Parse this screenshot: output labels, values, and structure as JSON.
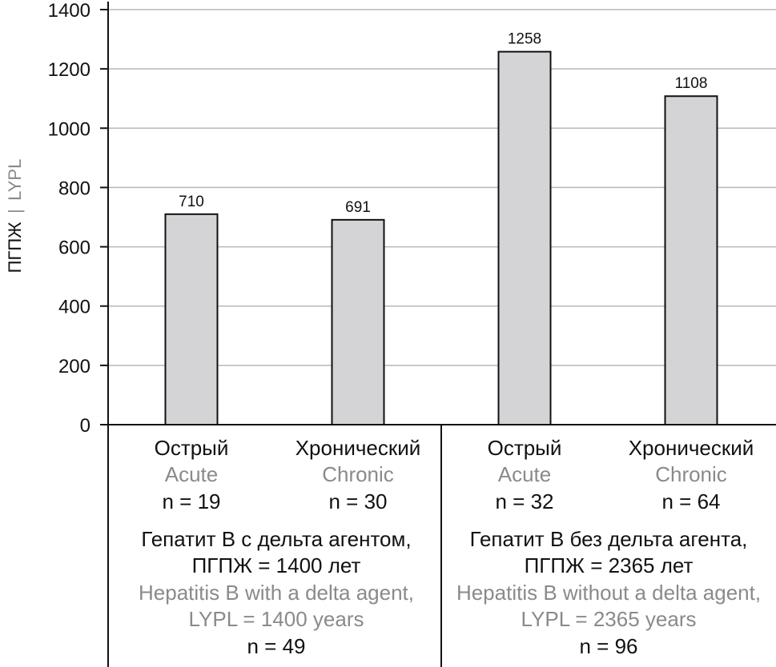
{
  "chart_data": {
    "type": "bar",
    "ylabel": {
      "ru": "ПГПЖ",
      "separator": "|",
      "en": "LYPL"
    },
    "ylim": [
      0,
      1400
    ],
    "yticks": [
      0,
      200,
      400,
      600,
      800,
      1000,
      1200,
      1400
    ],
    "grid": true,
    "bar_color": "#d4d4d6",
    "series": [
      {
        "values": [
          710,
          691,
          1258,
          1108
        ]
      }
    ],
    "categories": [
      {
        "ru": "Острый",
        "en": "Acute",
        "n": "n = 19",
        "value": 710,
        "label": "710"
      },
      {
        "ru": "Хронический",
        "en": "Chronic",
        "n": "n = 30",
        "value": 691,
        "label": "691"
      },
      {
        "ru": "Острый",
        "en": "Acute",
        "n": "n = 32",
        "value": 1258,
        "label": "1258"
      },
      {
        "ru": "Хронический",
        "en": "Chronic",
        "n": "n = 64",
        "value": 1108,
        "label": "1108"
      }
    ],
    "groups": [
      {
        "ru_line1": "Гепатит В с дельта агентом,",
        "ru_line2": "ПГПЖ = 1400 лет",
        "en_line1": "Hepatitis B with a delta agent,",
        "en_line2": "LYPL = 1400 years",
        "n": "n = 49"
      },
      {
        "ru_line1": "Гепатит В без дельта агента,",
        "ru_line2": "ПГПЖ = 2365 лет",
        "en_line1": "Hepatitis B without a delta agent,",
        "en_line2": "LYPL = 2365 years",
        "n": "n = 96"
      }
    ]
  }
}
